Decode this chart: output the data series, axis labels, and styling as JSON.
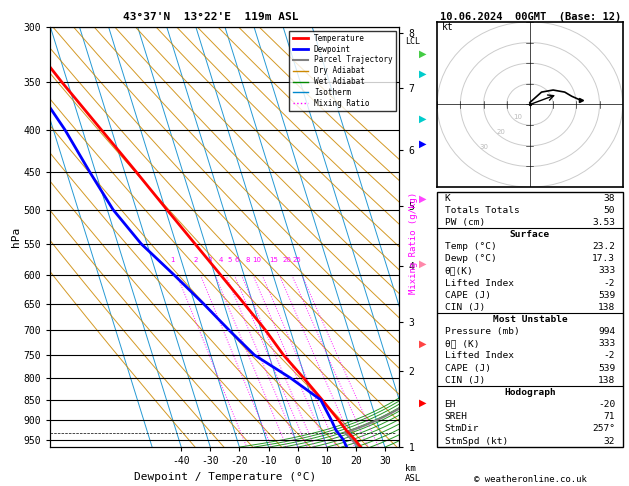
{
  "title_left": "43°37'N  13°22'E  119m ASL",
  "title_right": "10.06.2024  00GMT  (Base: 12)",
  "xlabel": "Dewpoint / Temperature (°C)",
  "ylabel_left": "hPa",
  "pressure_levels": [
    300,
    350,
    400,
    450,
    500,
    550,
    600,
    650,
    700,
    750,
    800,
    850,
    900,
    950
  ],
  "pressure_ticks": [
    300,
    350,
    400,
    450,
    500,
    550,
    600,
    650,
    700,
    750,
    800,
    850,
    900,
    950
  ],
  "xlim": [
    -40,
    35
  ],
  "pmin": 300,
  "pmax": 970,
  "skew": 45.0,
  "temp_color": "#ff0000",
  "dewp_color": "#0000ff",
  "parcel_color": "#808080",
  "dry_adiabat_color": "#cc8800",
  "wet_adiabat_color": "#008800",
  "isotherm_color": "#0088cc",
  "mixing_ratio_color": "#ff00ff",
  "km_ticks": [
    1,
    2,
    3,
    4,
    5,
    6,
    7,
    8
  ],
  "km_pressures": [
    994,
    800,
    695,
    594,
    500,
    426,
    357,
    305
  ],
  "mixing_ratio_values": [
    1,
    2,
    3,
    4,
    5,
    6,
    8,
    10,
    15,
    20,
    25
  ],
  "lcl_pressure": 932,
  "temp_pressures": [
    994,
    950,
    925,
    900,
    850,
    800,
    750,
    700,
    650,
    600,
    550,
    500,
    450,
    400,
    350,
    300
  ],
  "temp_temps": [
    23.2,
    20.5,
    18.5,
    17.0,
    13.5,
    9.5,
    5.0,
    1.5,
    -3.0,
    -8.0,
    -13.5,
    -19.5,
    -26.0,
    -33.5,
    -42.0,
    -51.0
  ],
  "dewp_pressures": [
    994,
    950,
    925,
    900,
    850,
    800,
    750,
    700,
    650,
    600,
    550,
    500,
    450,
    400,
    350,
    300
  ],
  "dewp_temps": [
    17.3,
    16.5,
    15.0,
    14.5,
    13.0,
    5.0,
    -5.0,
    -11.0,
    -17.0,
    -24.0,
    -32.0,
    -38.0,
    -42.0,
    -46.0,
    -52.0,
    -58.0
  ],
  "stats_K": 38,
  "stats_TT": 50,
  "stats_PW": 3.53,
  "surf_temp": 23.2,
  "surf_dewp": 17.3,
  "surf_thetae": 333,
  "surf_li": -2,
  "surf_cape": 539,
  "surf_cin": 138,
  "mu_pressure": 994,
  "mu_thetae": 333,
  "mu_li": -2,
  "mu_cape": 539,
  "mu_cin": 138,
  "hodo_EH": -20,
  "hodo_SREH": 71,
  "hodo_StmDir": "257°",
  "hodo_StmSpd": 32,
  "copyright": "© weatheronline.co.uk",
  "wind_colors": [
    "#ff0000",
    "#ff4444",
    "#ff88aa",
    "#ff44ff",
    "#0000ff",
    "#00cccc",
    "#00cccc",
    "#44cc44"
  ],
  "wind_pressures": [
    340,
    400,
    500,
    600,
    700,
    750,
    850,
    900
  ]
}
